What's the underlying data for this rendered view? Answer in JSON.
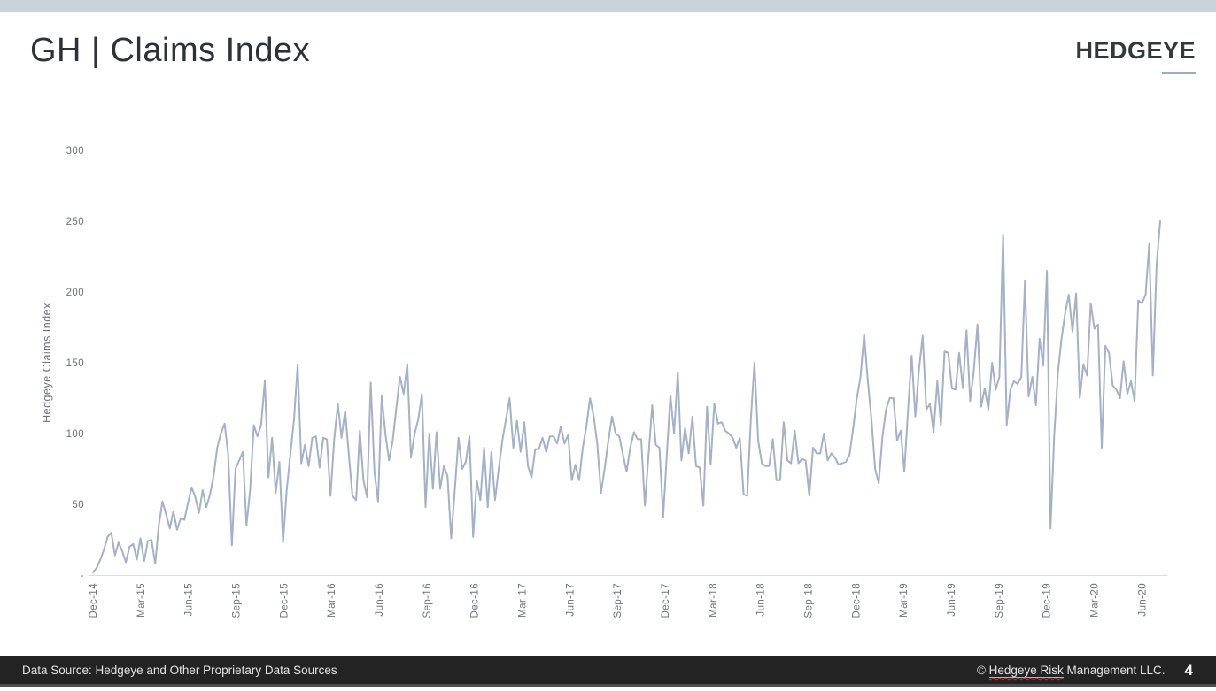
{
  "page": {
    "title": "GH | Claims Index",
    "logo": "HEDGEYE",
    "page_number": "4"
  },
  "footer": {
    "data_source": "Data Source: Hedgeye and Other Proprietary Data Sources",
    "copyright_prefix": "© ",
    "copyright_underlined": "Hedgeye Risk",
    "copyright_suffix": " Management LLC."
  },
  "chart_data": {
    "type": "line",
    "title": "GH | Claims Index",
    "ylabel": "Hedgeye Claims Index",
    "xlabel": "",
    "ylim": [
      0,
      300
    ],
    "yticks": [
      0,
      50,
      100,
      150,
      200,
      250,
      300
    ],
    "ytick_labels": [
      "-",
      "50",
      "100",
      "150",
      "200",
      "250",
      "300"
    ],
    "x_tick_labels": [
      "Dec-14",
      "Mar-15",
      "Jun-15",
      "Sep-15",
      "Dec-15",
      "Mar-16",
      "Jun-16",
      "Sep-16",
      "Dec-16",
      "Mar-17",
      "Jun-17",
      "Sep-17",
      "Dec-17",
      "Mar-18",
      "Jun-18",
      "Sep-18",
      "Dec-18",
      "Mar-19",
      "Jun-19",
      "Sep-19",
      "Dec-19",
      "Mar-20",
      "Jun-20"
    ],
    "frequency": "weekly",
    "x_range_note": "weekly observations from Dec-2014 through mid-Jul-2020",
    "grid": false,
    "legend_position": "none",
    "line_color": "#a5b1c8",
    "axis_text_color": "#6e7377",
    "axis_line_color": "#dcdcdc",
    "series": [
      {
        "name": "Hedgeye Claims Index",
        "values": [
          2,
          5,
          11,
          18,
          27,
          30,
          14,
          23,
          17,
          9,
          20,
          22,
          11,
          26,
          10,
          24,
          25,
          8,
          35,
          52,
          43,
          33,
          45,
          32,
          40,
          39,
          51,
          62,
          55,
          44,
          60,
          48,
          57,
          70,
          90,
          100,
          107,
          85,
          21,
          75,
          81,
          87,
          35,
          60,
          106,
          98,
          106,
          137,
          69,
          97,
          58,
          80,
          23,
          60,
          85,
          110,
          149,
          79,
          92,
          77,
          97,
          98,
          76,
          97,
          96,
          56,
          96,
          121,
          97,
          116,
          85,
          56,
          53,
          102,
          67,
          55,
          136,
          73,
          52,
          127,
          100,
          81,
          95,
          118,
          140,
          128,
          149,
          83,
          100,
          110,
          128,
          48,
          100,
          61,
          101,
          61,
          77,
          70,
          26,
          60,
          97,
          75,
          80,
          98,
          27,
          67,
          53,
          90,
          48,
          87,
          53,
          75,
          95,
          110,
          125,
          90,
          109,
          87,
          108,
          77,
          69,
          89,
          89,
          97,
          87,
          98,
          98,
          93,
          105,
          93,
          99,
          67,
          78,
          67,
          90,
          105,
          125,
          112,
          92,
          58,
          75,
          95,
          112,
          100,
          98,
          85,
          73,
          90,
          101,
          96,
          96,
          49,
          85,
          120,
          92,
          90,
          41,
          85,
          127,
          100,
          143,
          81,
          104,
          86,
          112,
          77,
          76,
          49,
          119,
          78,
          121,
          107,
          108,
          102,
          100,
          97,
          90,
          97,
          57,
          56,
          110,
          150,
          95,
          79,
          77,
          77,
          96,
          67,
          67,
          108,
          81,
          79,
          102,
          79,
          82,
          81,
          56,
          90,
          86,
          86,
          100,
          81,
          86,
          83,
          78,
          79,
          80,
          85,
          104,
          125,
          140,
          170,
          137,
          110,
          75,
          65,
          98,
          117,
          125,
          125,
          95,
          102,
          73,
          117,
          155,
          112,
          145,
          169,
          117,
          121,
          101,
          137,
          106,
          158,
          157,
          132,
          131,
          157,
          132,
          173,
          123,
          144,
          177,
          119,
          132,
          117,
          150,
          131,
          140,
          240,
          106,
          131,
          137,
          135,
          140,
          208,
          126,
          140,
          120,
          167,
          148,
          215,
          33,
          98,
          143,
          167,
          185,
          198,
          172,
          199,
          125,
          149,
          141,
          192,
          174,
          177,
          90,
          162,
          157,
          134,
          131,
          125,
          151,
          128,
          137,
          123,
          194,
          192,
          198,
          234,
          141,
          219,
          250
        ]
      }
    ]
  }
}
